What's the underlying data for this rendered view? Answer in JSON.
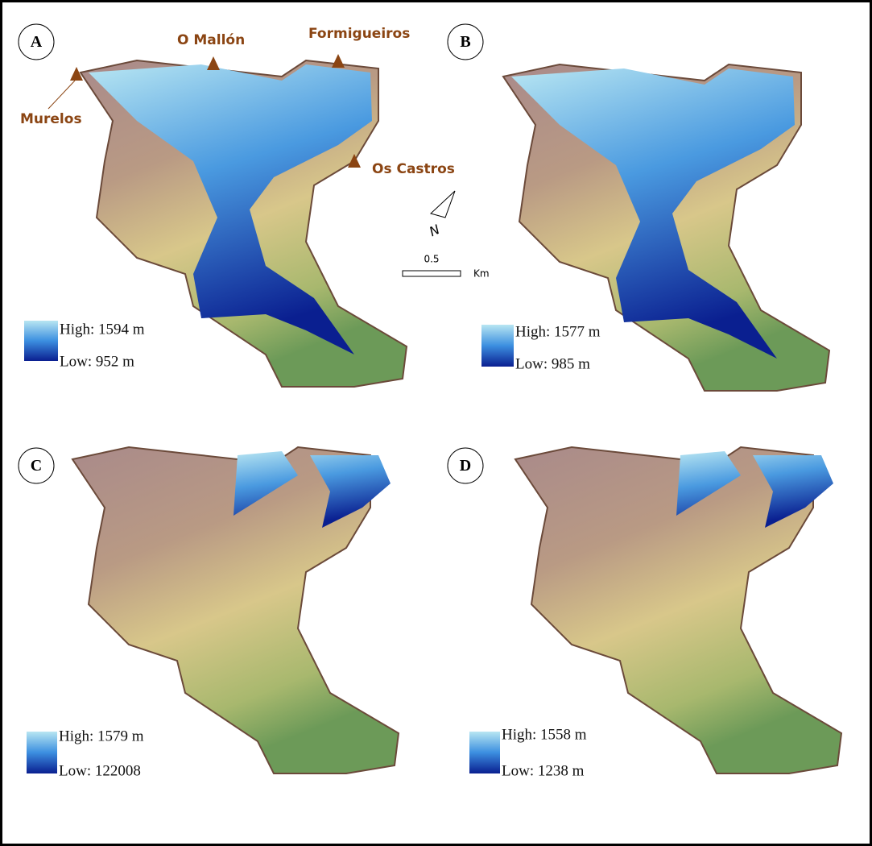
{
  "panels": [
    {
      "label": "A",
      "legend": {
        "high": "High: 1594 m",
        "low": "Low: 952 m"
      }
    },
    {
      "label": "B",
      "legend": {
        "high": "High: 1577 m",
        "low": "Low: 985 m"
      }
    },
    {
      "label": "C",
      "legend": {
        "high": "High: 1579 m",
        "low": "Low: 122008"
      }
    },
    {
      "label": "D",
      "legend": {
        "high": "High: 1558 m",
        "low": "Low: 1238 m"
      }
    }
  ],
  "places": [
    "Murelos",
    "O Mallón",
    "Formigueiros",
    "Os Castros"
  ],
  "north": "N",
  "scale": {
    "value": "0.5",
    "unit": "Km"
  }
}
